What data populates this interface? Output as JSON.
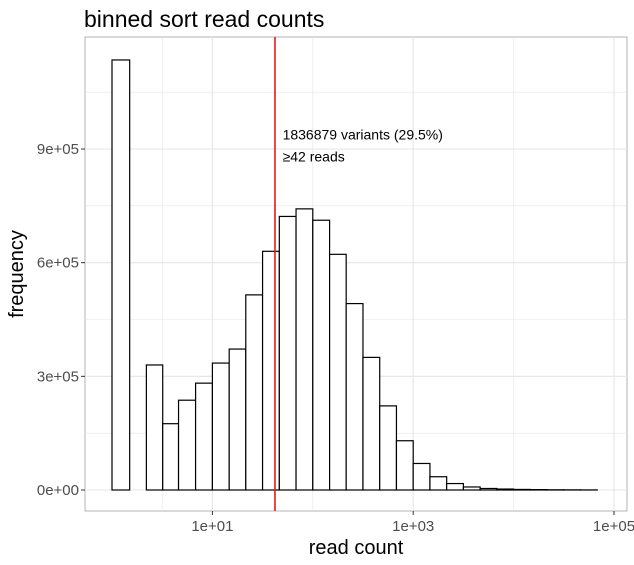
{
  "chart_data": {
    "type": "bar",
    "title": "binned sort read counts",
    "xlabel": "read count",
    "ylabel": "frequency",
    "x_scale": "log10",
    "xlim": [
      1,
      100000
    ],
    "ylim": [
      0,
      1150000
    ],
    "x_ticks": [
      {
        "value": 10,
        "label": "1e+01"
      },
      {
        "value": 1000,
        "label": "1e+03"
      },
      {
        "value": 100000,
        "label": "1e+05"
      }
    ],
    "y_ticks": [
      {
        "value": 0,
        "label": "0e+00"
      },
      {
        "value": 300000,
        "label": "3e+05"
      },
      {
        "value": 600000,
        "label": "6e+05"
      },
      {
        "value": 900000,
        "label": "9e+05"
      }
    ],
    "grid": true,
    "bars": [
      {
        "x0": 1,
        "x1": 1.5,
        "value": 1135000
      },
      {
        "x0": 1.5,
        "x1": 2.2,
        "value": 0
      },
      {
        "x0": 2.2,
        "x1": 3.2,
        "value": 330000
      },
      {
        "x0": 3.2,
        "x1": 4.6,
        "value": 175000
      },
      {
        "x0": 4.6,
        "x1": 6.8,
        "value": 237000
      },
      {
        "x0": 6.8,
        "x1": 10,
        "value": 282000
      },
      {
        "x0": 10,
        "x1": 14.7,
        "value": 335000
      },
      {
        "x0": 14.7,
        "x1": 21.5,
        "value": 372000
      },
      {
        "x0": 21.5,
        "x1": 31.6,
        "value": 515000
      },
      {
        "x0": 31.6,
        "x1": 46.4,
        "value": 630000
      },
      {
        "x0": 46.4,
        "x1": 68.1,
        "value": 722000
      },
      {
        "x0": 68.1,
        "x1": 100,
        "value": 742000
      },
      {
        "x0": 100,
        "x1": 147,
        "value": 712000
      },
      {
        "x0": 147,
        "x1": 215,
        "value": 622000
      },
      {
        "x0": 215,
        "x1": 316,
        "value": 492000
      },
      {
        "x0": 316,
        "x1": 464,
        "value": 350000
      },
      {
        "x0": 464,
        "x1": 681,
        "value": 222000
      },
      {
        "x0": 681,
        "x1": 1000,
        "value": 130000
      },
      {
        "x0": 1000,
        "x1": 1468,
        "value": 70000
      },
      {
        "x0": 1468,
        "x1": 2154,
        "value": 35000
      },
      {
        "x0": 2154,
        "x1": 3162,
        "value": 17000
      },
      {
        "x0": 3162,
        "x1": 4642,
        "value": 8000
      },
      {
        "x0": 4642,
        "x1": 6813,
        "value": 4000
      },
      {
        "x0": 6813,
        "x1": 10000,
        "value": 2500
      },
      {
        "x0": 10000,
        "x1": 14678,
        "value": 1500
      },
      {
        "x0": 14678,
        "x1": 21544,
        "value": 1000
      },
      {
        "x0": 21544,
        "x1": 31623,
        "value": 600
      },
      {
        "x0": 31623,
        "x1": 46416,
        "value": 400
      },
      {
        "x0": 46416,
        "x1": 68129,
        "value": 200
      }
    ],
    "threshold": {
      "value": 42,
      "color": "#e41a1c"
    },
    "annotation": {
      "x": 50,
      "y": 925000,
      "lines": [
        "1836879 variants (29.5%)",
        "≥42 reads"
      ]
    },
    "colors": {
      "bar_fill": "#ffffff",
      "bar_stroke": "#000000",
      "grid": "#e5e5e5",
      "panel_border": "#b3b3b3"
    }
  }
}
